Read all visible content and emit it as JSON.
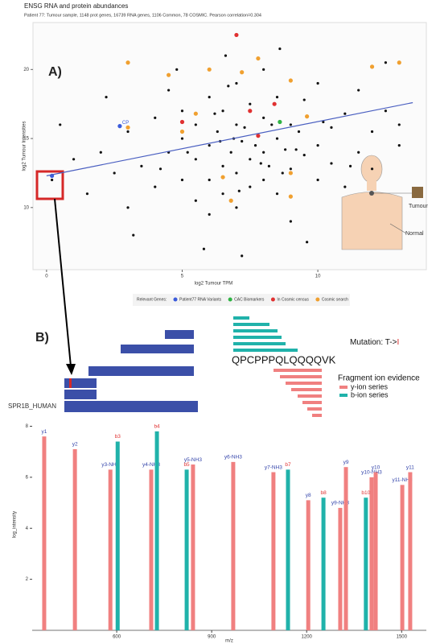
{
  "panel_labels": {
    "a": "A)",
    "b": "B)"
  },
  "figure": {
    "tumour": "Tumour",
    "normal": "Normal"
  },
  "protein": {
    "name": "SPR1B_HUMAN",
    "sequence": "QPCPPPQLQQQQVK",
    "mutation": "Mutation: T->",
    "mutation_residue": "I"
  },
  "chart_data": [
    {
      "type": "scatter",
      "title": "ENSG RNA and protein abundances",
      "subtitle": "Patient 77: Tumour sample, 1148 prot genes, 16739 RNA genes, 1106 Common, 78 COSMIC. Pearson correlation=0.304",
      "x_label": "log2 Tumour TPM",
      "y_label": "log2 Tumour Intensities",
      "xlim": [
        -0.5,
        14
      ],
      "ylim": [
        5.5,
        23.4
      ],
      "xticks": [
        0,
        5,
        10
      ],
      "yticks": [
        10,
        15,
        20
      ],
      "legend_title": "Relevant Genes:",
      "trend": {
        "color": "#4a5fc1",
        "x": [
          0,
          13.5
        ],
        "y": [
          12.3,
          17.6
        ]
      },
      "series": [
        {
          "color": "#111111",
          "x": [
            1.0,
            1.5,
            2,
            2.5,
            3,
            3,
            3.5,
            4,
            4,
            4.5,
            4.5,
            5,
            5,
            5,
            5.5,
            5.5,
            5.5,
            6,
            6,
            6,
            6,
            6.3,
            6.5,
            6.5,
            6.5,
            6.8,
            7,
            7,
            7,
            7,
            7.2,
            7.5,
            7.5,
            7.5,
            7.8,
            8,
            8,
            8,
            8,
            8.2,
            8.5,
            8.5,
            8.5,
            8.8,
            9,
            9,
            9,
            9.3,
            9.5,
            9.5,
            10,
            10,
            10,
            10.5,
            10.5,
            11,
            11,
            11.5,
            11.5,
            12,
            12,
            12.5,
            12.5,
            13,
            13,
            5.8,
            7.2,
            9.6,
            3.2,
            0.5,
            0.2,
            2.2,
            6.6,
            8.6,
            4.8,
            6.9,
            7.3,
            7.7,
            6.4,
            7.9,
            8.3,
            6.2,
            5.2,
            9.2,
            8.7,
            7.1,
            6.7,
            10.2,
            11.2,
            4.2
          ],
          "y": [
            13.5,
            11,
            14,
            12.5,
            15.5,
            10,
            13,
            16.5,
            11.5,
            14,
            18.5,
            12,
            15,
            17,
            13.5,
            10.5,
            16,
            14.5,
            12,
            18,
            9.5,
            15.5,
            13,
            17,
            11,
            14,
            16,
            12.5,
            19,
            10,
            14.8,
            13.5,
            17.5,
            11.5,
            15.2,
            14,
            12,
            16.5,
            20,
            13,
            15,
            11,
            18,
            14.2,
            16,
            12.8,
            9,
            15.5,
            13.8,
            17.8,
            14.5,
            12,
            19,
            15.8,
            13.2,
            16.8,
            11.5,
            14,
            18.5,
            15.5,
            12.8,
            17,
            20.5,
            14.5,
            16,
            7,
            6.5,
            7.5,
            8,
            16,
            12,
            18,
            21,
            21.5,
            20,
            15,
            15.8,
            14.5,
            14.8,
            13.2,
            16,
            16.8,
            14,
            14.2,
            12.5,
            11.2,
            18.8,
            16.2,
            13,
            12.8
          ]
        },
        {
          "name": "Patient77 RNA Variants",
          "color": "#3b5bdb",
          "x": [
            2.7,
            0.2
          ],
          "y": [
            15.9,
            12.3
          ],
          "labels": [
            "CP",
            null
          ]
        },
        {
          "name": "CAC Biomarkers",
          "color": "#2fb344",
          "x": [
            8.6
          ],
          "y": [
            16.2
          ]
        },
        {
          "name": "In Cosmic census",
          "color": "#e03131",
          "x": [
            7,
            5,
            7.5,
            8.4,
            7.8
          ],
          "y": [
            22.5,
            16.2,
            17,
            17.5,
            15.2
          ]
        },
        {
          "name": "Cosmic search",
          "color": "#f0a030",
          "x": [
            3,
            6,
            7.2,
            7.8,
            12,
            13,
            4.5,
            9,
            5,
            3,
            9,
            6.5,
            9,
            6.8,
            9.6,
            5.5
          ],
          "y": [
            20.5,
            20,
            19.8,
            20.8,
            20.2,
            20.5,
            19.6,
            19.2,
            15.5,
            15.8,
            12.5,
            12.2,
            10.8,
            10.5,
            16.6,
            16.8
          ]
        }
      ]
    },
    {
      "type": "bar",
      "x_label": "m/z",
      "y_label": "log_intensity",
      "xlim": [
        333,
        1578
      ],
      "ylim": [
        0,
        8.3
      ],
      "xticks": [
        600,
        900,
        1200,
        1500
      ],
      "yticks": [
        2,
        4,
        6,
        8
      ],
      "legend_title": "Fragment ion evidence",
      "series": [
        {
          "name": "y-ion series",
          "color": "#f08080",
          "label_color": "#3344aa",
          "x": [
            371,
            468,
            580,
            709,
            841,
            968,
            1095,
            1205,
            1306,
            1324,
            1405,
            1418,
            1502,
            1527
          ],
          "values": [
            7.6,
            7.1,
            6.3,
            6.3,
            6.5,
            6.6,
            6.2,
            5.1,
            4.8,
            6.4,
            6.0,
            6.2,
            5.7,
            6.2
          ],
          "labels": [
            "y1",
            "y2",
            "y3-NH3",
            "y4-NH3",
            "y5-NH3",
            "y6-NH3",
            "y7-NH3",
            "y8",
            "y9-NH3",
            "y9",
            "y10-NH3",
            "y10",
            "y11-NH3",
            "y11"
          ]
        },
        {
          "name": "b-ion series",
          "color": "#20b2aa",
          "label_color": "#e03131",
          "x": [
            603,
            727,
            821,
            1141,
            1253,
            1387
          ],
          "values": [
            7.4,
            7.8,
            6.3,
            6.3,
            5.2,
            5.2
          ],
          "labels": [
            "b3",
            "b4",
            "b5",
            "b7",
            "b8",
            "b10"
          ]
        }
      ]
    }
  ]
}
